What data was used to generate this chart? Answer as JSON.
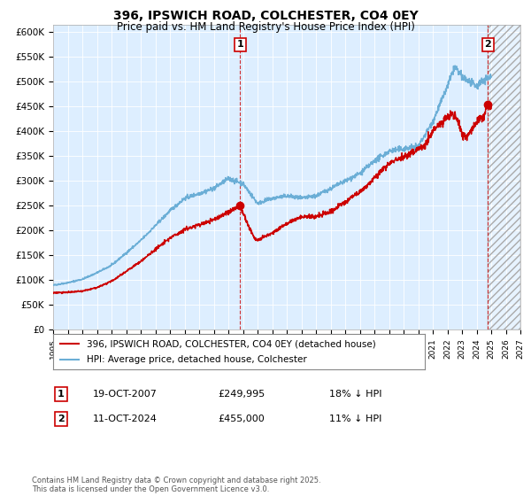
{
  "title": "396, IPSWICH ROAD, COLCHESTER, CO4 0EY",
  "subtitle": "Price paid vs. HM Land Registry's House Price Index (HPI)",
  "ylabel_ticks": [
    "£0",
    "£50K",
    "£100K",
    "£150K",
    "£200K",
    "£250K",
    "£300K",
    "£350K",
    "£400K",
    "£450K",
    "£500K",
    "£550K",
    "£600K"
  ],
  "ytick_values": [
    0,
    50000,
    100000,
    150000,
    200000,
    250000,
    300000,
    350000,
    400000,
    450000,
    500000,
    550000,
    600000
  ],
  "ylim": [
    0,
    615000
  ],
  "xlim_start": 1995.0,
  "xlim_end": 2027.0,
  "xtick_years": [
    1995,
    1996,
    1997,
    1998,
    1999,
    2000,
    2001,
    2002,
    2003,
    2004,
    2005,
    2006,
    2007,
    2008,
    2009,
    2010,
    2011,
    2012,
    2013,
    2014,
    2015,
    2016,
    2017,
    2018,
    2019,
    2020,
    2021,
    2022,
    2023,
    2024,
    2025,
    2026,
    2027
  ],
  "hpi_color": "#6baed6",
  "price_color": "#cc0000",
  "chart_bg": "#ddeeff",
  "marker1_year": 2007.8,
  "marker1_price": 249995,
  "marker2_year": 2024.78,
  "marker2_price": 455000,
  "marker1_label": "1",
  "marker2_label": "2",
  "legend_line1": "396, IPSWICH ROAD, COLCHESTER, CO4 0EY (detached house)",
  "legend_line2": "HPI: Average price, detached house, Colchester",
  "annotation1_date": "19-OCT-2007",
  "annotation1_price": "£249,995",
  "annotation1_hpi": "18% ↓ HPI",
  "annotation2_date": "11-OCT-2024",
  "annotation2_price": "£455,000",
  "annotation2_hpi": "11% ↓ HPI",
  "footnote": "Contains HM Land Registry data © Crown copyright and database right 2025.\nThis data is licensed under the Open Government Licence v3.0.",
  "background_color": "#ffffff",
  "grid_color": "#ffffff"
}
